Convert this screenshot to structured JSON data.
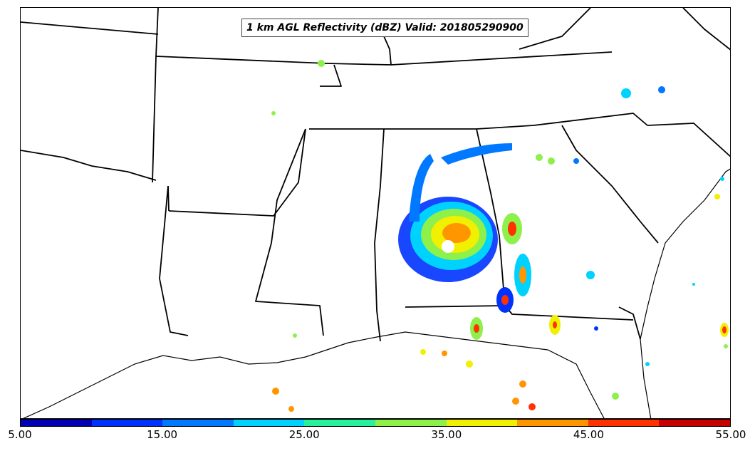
{
  "map": {
    "title": "1 km AGL Reflectivity (dBZ) Valid: 201805290900"
  },
  "colorbar": {
    "colors": [
      "#0000b4",
      "#0032ff",
      "#0078ff",
      "#00d2ff",
      "#28f09c",
      "#8ef04a",
      "#f0f000",
      "#ff9600",
      "#ff3200",
      "#c80000"
    ],
    "tick_labels": [
      "5.00",
      "15.00",
      "25.00",
      "35.00",
      "45.00",
      "55.00"
    ],
    "range": [
      5,
      55
    ],
    "unit": "dBZ"
  }
}
